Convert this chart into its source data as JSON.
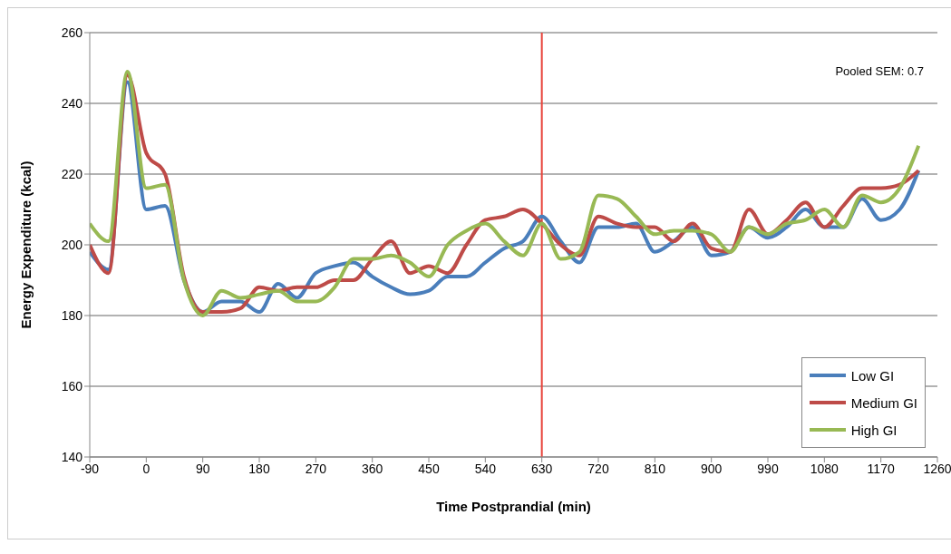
{
  "chart_data": {
    "type": "line",
    "xlabel": "Time Postprandial (min)",
    "ylabel": "Energy Expenditure (kcal)",
    "x": [
      -90,
      -60,
      -30,
      0,
      30,
      60,
      90,
      120,
      150,
      180,
      210,
      240,
      270,
      300,
      330,
      360,
      390,
      420,
      450,
      480,
      510,
      540,
      570,
      600,
      630,
      660,
      690,
      720,
      750,
      780,
      810,
      840,
      870,
      900,
      930,
      960,
      990,
      1020,
      1050,
      1080,
      1110,
      1140,
      1170,
      1200,
      1230
    ],
    "series": [
      {
        "name": "Low GI",
        "color": "#4a7ebb",
        "values": [
          198,
          193,
          246,
          210,
          211,
          190,
          181,
          184,
          184,
          181,
          189,
          185,
          192,
          194,
          195,
          191,
          188,
          186,
          187,
          191,
          191,
          195,
          199,
          201,
          208,
          201,
          195,
          205,
          205,
          206,
          198,
          201,
          205,
          197,
          198,
          205,
          202,
          205,
          210,
          205,
          205,
          213,
          207,
          210,
          221
        ]
      },
      {
        "name": "Medium GI",
        "color": "#be4b48",
        "values": [
          200,
          192,
          248,
          226,
          220,
          191,
          181,
          181,
          182,
          188,
          187,
          188,
          188,
          190,
          190,
          196,
          201,
          192,
          194,
          192,
          200,
          207,
          208,
          210,
          206,
          200,
          197,
          208,
          206,
          205,
          205,
          201,
          206,
          199,
          198,
          210,
          203,
          207,
          212,
          205,
          211,
          216,
          216,
          217,
          221
        ]
      },
      {
        "name": "High GI",
        "color": "#98b954",
        "values": [
          206,
          201,
          249,
          216,
          217,
          190,
          180,
          187,
          185,
          186,
          187,
          184,
          184,
          188,
          196,
          196,
          197,
          195,
          191,
          200,
          204,
          206,
          201,
          197,
          206,
          196,
          198,
          214,
          213,
          208,
          203,
          204,
          204,
          203,
          198,
          205,
          203,
          206,
          207,
          210,
          205,
          214,
          212,
          216,
          228
        ]
      }
    ],
    "xlim": [
      -90,
      1260
    ],
    "xticks": [
      -90,
      0,
      90,
      180,
      270,
      360,
      450,
      540,
      630,
      720,
      810,
      900,
      990,
      1080,
      1170,
      1260
    ],
    "ylim": [
      140,
      260
    ],
    "yticks": [
      140,
      160,
      180,
      200,
      220,
      240,
      260
    ],
    "grid": "y",
    "legend": "bottom right",
    "marker": "none",
    "line_style": "solid",
    "ref_lines": [
      {
        "axis": "x",
        "value": 630,
        "color": "#e8433a"
      }
    ],
    "annotations": [
      "Pooled SEM: 0.7"
    ]
  }
}
